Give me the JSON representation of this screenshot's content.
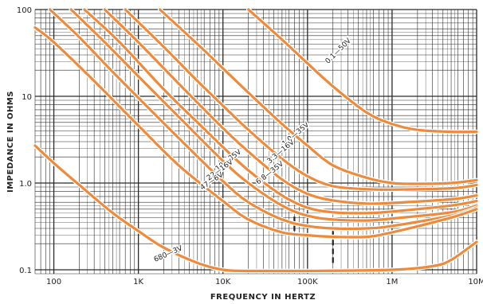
{
  "chart_data": {
    "type": "line",
    "title": "",
    "xlabel": "FREQUENCY IN HERTZ",
    "ylabel": "IMPEDANCE IN OHMS",
    "xscale": "log",
    "yscale": "log",
    "xlim": [
      60,
      10000000
    ],
    "ylim": [
      0.09,
      100
    ],
    "grid": true,
    "colors": {
      "curve": "#ee8a3c",
      "grid": "#2a2a2a",
      "marker": "#222222"
    },
    "x_ticks": [
      {
        "value": 100,
        "label": "100"
      },
      {
        "value": 1000,
        "label": "1K"
      },
      {
        "value": 10000,
        "label": "10K"
      },
      {
        "value": 100000,
        "label": "100K"
      },
      {
        "value": 1000000,
        "label": "1M"
      },
      {
        "value": 10000000,
        "label": "10M"
      }
    ],
    "y_ticks": [
      {
        "value": 0.1,
        "label": "0.1"
      },
      {
        "value": 1,
        "label": "1.0"
      },
      {
        "value": 10,
        "label": "10"
      },
      {
        "value": 100,
        "label": "100"
      }
    ],
    "series": [
      {
        "name": "0.1—50V",
        "points": [
          [
            20000,
            100
          ],
          [
            50000,
            45
          ],
          [
            100000,
            24
          ],
          [
            200000,
            13
          ],
          [
            500000,
            6.5
          ],
          [
            1000000,
            4.8
          ],
          [
            2000000,
            4.1
          ],
          [
            5000000,
            3.9
          ],
          [
            10000000,
            3.9
          ]
        ]
      },
      {
        "name": "1.0—35V",
        "points": [
          [
            1800,
            100
          ],
          [
            5000,
            40
          ],
          [
            10000,
            21
          ],
          [
            20000,
            11
          ],
          [
            50000,
            4.8
          ],
          [
            100000,
            2.7
          ],
          [
            200000,
            1.6
          ],
          [
            500000,
            1.15
          ],
          [
            1000000,
            1.0
          ],
          [
            2000000,
            0.98
          ],
          [
            5000000,
            1.0
          ],
          [
            10000000,
            1.08
          ]
        ]
      },
      {
        "name": "3.3—16V",
        "points": [
          [
            700,
            100
          ],
          [
            2000,
            37
          ],
          [
            5000,
            15
          ],
          [
            10000,
            7.8
          ],
          [
            20000,
            4.1
          ],
          [
            50000,
            1.9
          ],
          [
            100000,
            1.2
          ],
          [
            200000,
            0.92
          ],
          [
            500000,
            0.85
          ],
          [
            1000000,
            0.84
          ],
          [
            5000000,
            0.87
          ],
          [
            10000000,
            0.95
          ]
        ]
      },
      {
        "name": "6.8—35V",
        "points": [
          [
            400,
            100
          ],
          [
            1000,
            42
          ],
          [
            3000,
            14
          ],
          [
            10000,
            4.3
          ],
          [
            20000,
            2.3
          ],
          [
            50000,
            1.1
          ],
          [
            100000,
            0.75
          ],
          [
            200000,
            0.63
          ],
          [
            500000,
            0.58
          ],
          [
            1000000,
            0.59
          ],
          [
            5000000,
            0.65
          ],
          [
            10000000,
            0.72
          ]
        ]
      },
      {
        "name": "10—35V",
        "points": [
          [
            230,
            100
          ],
          [
            600,
            42
          ],
          [
            2000,
            12
          ],
          [
            5000,
            5.0
          ],
          [
            10000,
            2.6
          ],
          [
            20000,
            1.4
          ],
          [
            50000,
            0.72
          ],
          [
            100000,
            0.52
          ],
          [
            200000,
            0.46
          ],
          [
            500000,
            0.45
          ],
          [
            1000000,
            0.47
          ],
          [
            5000000,
            0.55
          ],
          [
            10000000,
            0.62
          ]
        ]
      },
      {
        "name": "22—16V",
        "points": [
          [
            160,
            100
          ],
          [
            400,
            42
          ],
          [
            1000,
            17
          ],
          [
            3000,
            5.8
          ],
          [
            10000,
            1.8
          ],
          [
            20000,
            1.0
          ],
          [
            50000,
            0.55
          ],
          [
            100000,
            0.42
          ],
          [
            200000,
            0.38
          ],
          [
            500000,
            0.37
          ],
          [
            1000000,
            0.39
          ],
          [
            5000000,
            0.46
          ],
          [
            10000000,
            0.55
          ]
        ]
      },
      {
        "name": "47—6V",
        "points": [
          [
            90,
            100
          ],
          [
            200,
            48
          ],
          [
            500,
            19
          ],
          [
            1000,
            9.6
          ],
          [
            3000,
            3.3
          ],
          [
            10000,
            1.05
          ],
          [
            20000,
            0.6
          ],
          [
            50000,
            0.38
          ],
          [
            100000,
            0.32
          ],
          [
            200000,
            0.3
          ],
          [
            500000,
            0.3
          ],
          [
            1000000,
            0.32
          ],
          [
            5000000,
            0.42
          ],
          [
            10000000,
            0.52
          ]
        ]
      },
      {
        "name": "",
        "points": [
          [
            60,
            62
          ],
          [
            100,
            42
          ],
          [
            300,
            15
          ],
          [
            1000,
            4.6
          ],
          [
            3000,
            1.6
          ],
          [
            10000,
            0.62
          ],
          [
            20000,
            0.38
          ],
          [
            50000,
            0.27
          ],
          [
            100000,
            0.25
          ],
          [
            200000,
            0.24
          ],
          [
            500000,
            0.24
          ],
          [
            1000000,
            0.27
          ],
          [
            5000000,
            0.4
          ],
          [
            10000000,
            0.5
          ]
        ]
      },
      {
        "name": "680—3V",
        "points": [
          [
            60,
            2.7
          ],
          [
            100,
            1.7
          ],
          [
            200,
            0.95
          ],
          [
            500,
            0.45
          ],
          [
            1000,
            0.28
          ],
          [
            2000,
            0.18
          ],
          [
            5000,
            0.12
          ],
          [
            10000,
            0.1
          ],
          [
            20000,
            0.097
          ],
          [
            100000,
            0.097
          ],
          [
            1000000,
            0.1
          ],
          [
            3000000,
            0.11
          ],
          [
            5000000,
            0.13
          ],
          [
            10000000,
            0.21
          ]
        ]
      }
    ],
    "curve_labels": [
      {
        "text": "0.1—50V",
        "x": 240000,
        "y": 32,
        "angle": -45
      },
      {
        "text": "1.0—35V",
        "x": 75000,
        "y": 3.5,
        "angle": -40
      },
      {
        "text": "3.3—16V",
        "x": 50000,
        "y": 2.2,
        "angle": -40
      },
      {
        "text": "6.8—35V",
        "x": 37000,
        "y": 1.25,
        "angle": -38
      },
      {
        "text": "10—35V",
        "x": 12000,
        "y": 1.75,
        "angle": -38
      },
      {
        "text": "22—16V",
        "x": 9500,
        "y": 1.35,
        "angle": -36
      },
      {
        "text": "47—6V",
        "x": 7600,
        "y": 1.0,
        "angle": -34
      },
      {
        "text": "680—3V",
        "x": 2300,
        "y": 0.145,
        "angle": -24
      }
    ],
    "markers": [
      {
        "x": 70000,
        "y_from": 0.28,
        "y_to": 0.45
      },
      {
        "x": 200000,
        "y_from": 0.12,
        "y_to": 0.3
      }
    ]
  }
}
